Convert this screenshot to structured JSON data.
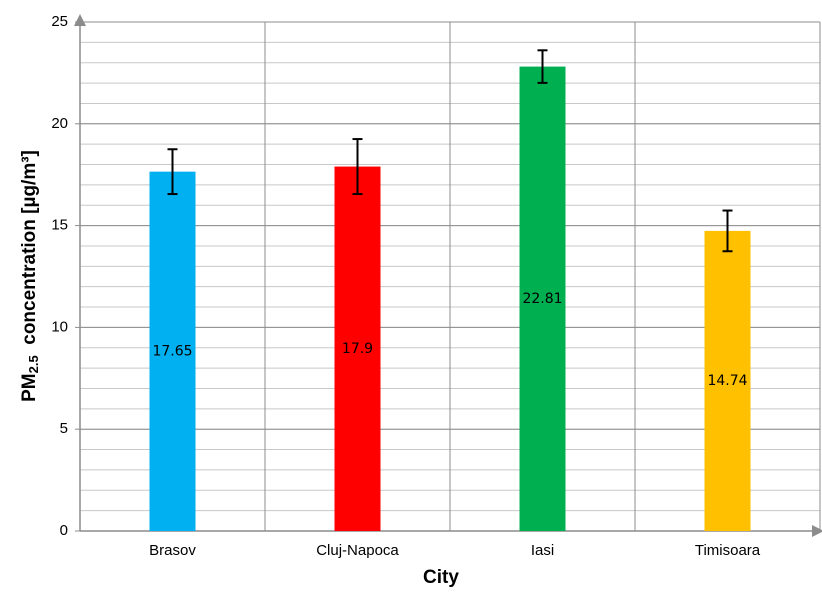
{
  "chart_data": {
    "type": "bar",
    "x_label": "City",
    "y_label": {
      "main": "PM",
      "sub": "2.5",
      "rest": "  concentration [µg/m³]"
    },
    "categories": [
      "Brasov",
      "Cluj-Napoca",
      "Iasi",
      "Timisoara"
    ],
    "values": [
      17.65,
      17.9,
      22.81,
      14.74
    ],
    "errors": [
      1.1,
      1.35,
      0.8,
      1.0
    ],
    "colors": [
      "#00b0f0",
      "#ff0000",
      "#00b050",
      "#ffc000"
    ],
    "ylim": [
      0,
      25
    ],
    "yticks": [
      0,
      5,
      10,
      15,
      20,
      25
    ],
    "grid": true,
    "minor_grid_step": 1
  }
}
